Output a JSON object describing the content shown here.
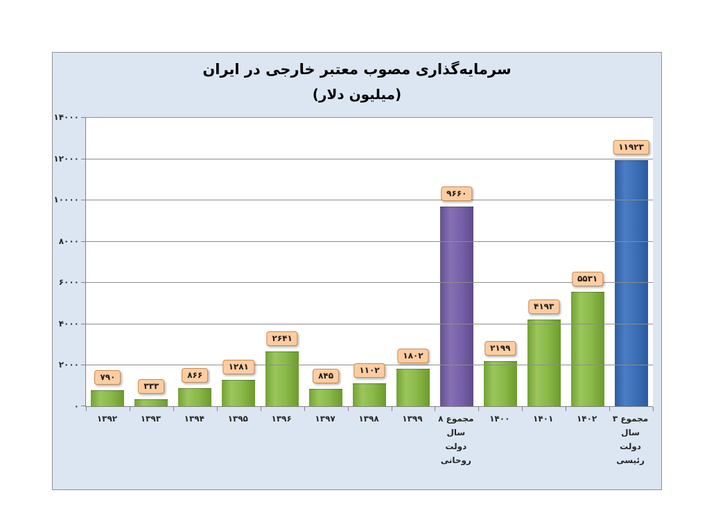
{
  "chart": {
    "title": "سرمایه‌گذاری مصوب معتبر خارجی در ایران",
    "subtitle": "(میلیون دلار)"
  },
  "chart_data": {
    "type": "bar",
    "title": "سرمایه‌گذاری مصوب معتبر خارجی در ایران",
    "subtitle": "(میلیون دلار)",
    "xlabel": "",
    "ylabel": "",
    "ylim": [
      0,
      14000
    ],
    "grid": true,
    "grid_step": 2000,
    "legend_position": "none",
    "y_tick_labels": [
      "۰",
      "۲۰۰۰",
      "۴۰۰۰",
      "۶۰۰۰",
      "۸۰۰۰",
      "۱۰۰۰۰",
      "۱۲۰۰۰",
      "۱۴۰۰۰"
    ],
    "categories": [
      "۱۳۹۲",
      "۱۳۹۳",
      "۱۳۹۴",
      "۱۳۹۵",
      "۱۳۹۶",
      "۱۳۹۷",
      "۱۳۹۸",
      "۱۳۹۹",
      "مجموع ۸ سال\nدولت روحانی",
      "۱۴۰۰",
      "۱۴۰۱",
      "۱۴۰۲",
      "مجموع ۳ سال\nدولت رئیسی"
    ],
    "values": [
      790,
      333,
      866,
      1281,
      2641,
      845,
      1102,
      1802,
      9660,
      2199,
      4193,
      5531,
      11923
    ],
    "value_labels": [
      "۷۹۰",
      "۳۳۳",
      "۸۶۶",
      "۱۲۸۱",
      "۲۶۴۱",
      "۸۴۵",
      "۱۱۰۲",
      "۱۸۰۲",
      "۹۶۶۰",
      "۲۱۹۹",
      "۴۱۹۳",
      "۵۵۳۱",
      "۱۱۹۲۳"
    ],
    "bar_color_keys": [
      "green",
      "green",
      "green",
      "green",
      "green",
      "green",
      "green",
      "green",
      "purple",
      "green",
      "green",
      "green",
      "blue"
    ],
    "colors": {
      "green": "#84b23e",
      "purple": "#7661a9",
      "blue": "#3a6eb5",
      "label_bg": "#fccda1",
      "label_border": "#c98b4e",
      "chart_bg": "#dce6f2",
      "plot_bg": "#ffffff",
      "grid": "#8c8c8c",
      "text": "#262626"
    }
  }
}
